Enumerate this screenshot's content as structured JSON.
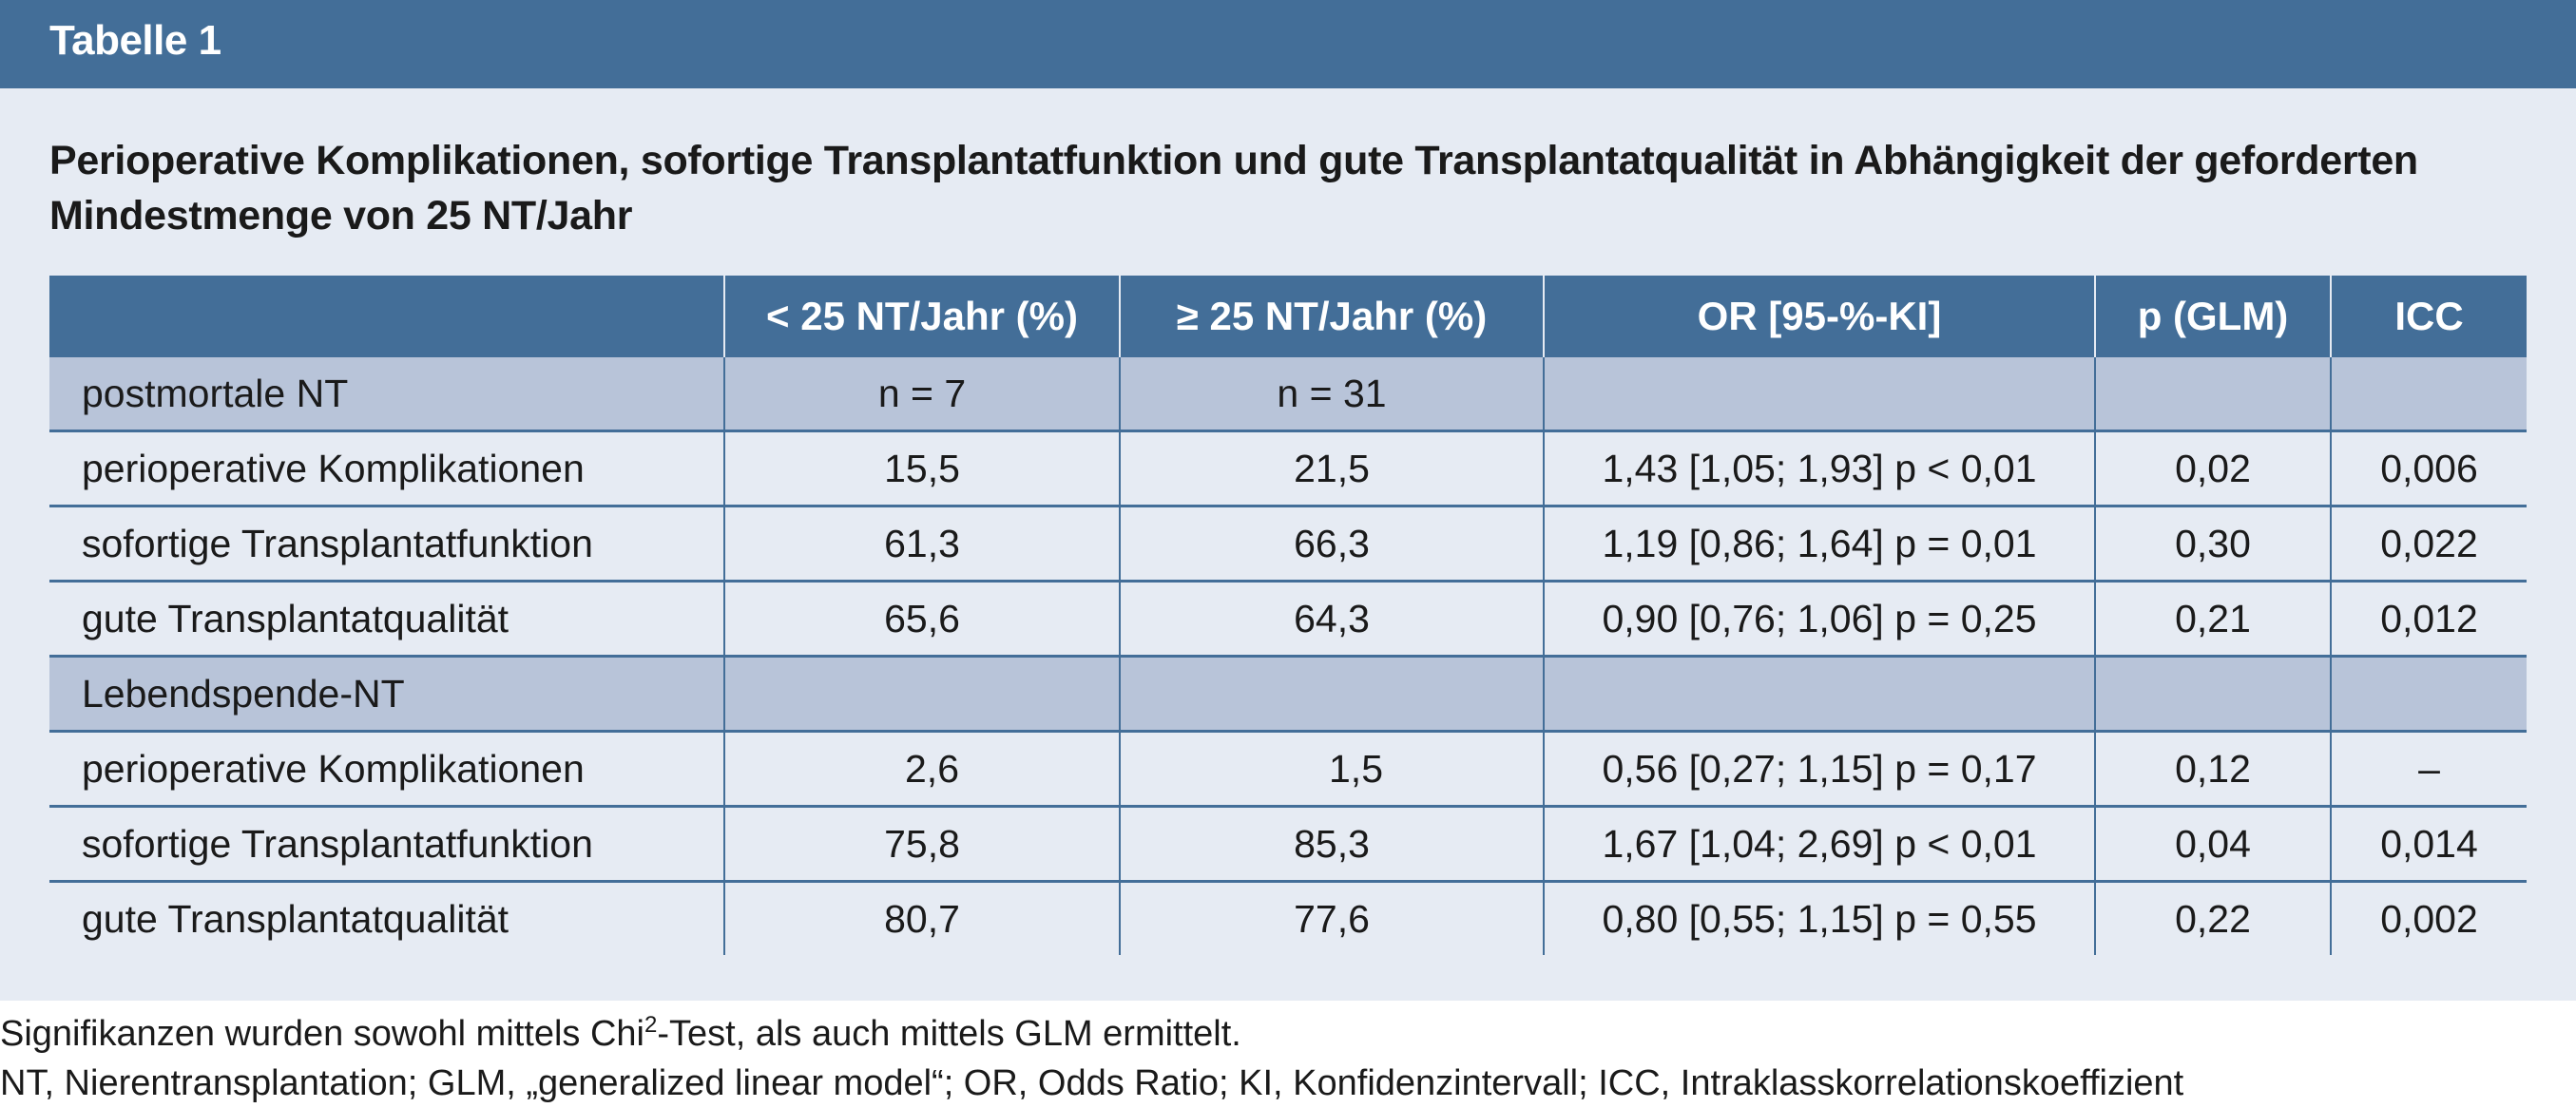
{
  "header": {
    "label": "Tabelle 1"
  },
  "caption": "Perioperative Komplikationen, sofortige Transplantatfunktion und gute Transplantatqualität in Abhängigkeit der geforderten Mindestmenge von 25 NT/Jahr",
  "table": {
    "columns": [
      "",
      "< 25 NT/Jahr (%)",
      "≥ 25 NT/Jahr (%)",
      "OR [95-%-KI]",
      "p (GLM)",
      "ICC"
    ],
    "rows": [
      {
        "group": true,
        "cells": [
          "postmortale NT",
          "n = 7",
          "n = 31",
          "",
          "",
          ""
        ]
      },
      {
        "cells": [
          "perioperative Komplikationen",
          "15,5",
          "21,5",
          "1,43 [1,05; 1,93] p < 0,01",
          "0,02",
          "0,006"
        ]
      },
      {
        "cells": [
          "sofortige Transplantatfunktion",
          "61,3",
          "66,3",
          "1,19 [0,86; 1,64] p = 0,01",
          "0,30",
          "0,022"
        ]
      },
      {
        "cells": [
          "gute Transplantatqualität",
          "65,6",
          "64,3",
          "0,90 [0,76; 1,06] p = 0,25",
          "0,21",
          "0,012"
        ]
      },
      {
        "group": true,
        "cells": [
          "Lebendspende-NT",
          "",
          "",
          "",
          "",
          ""
        ]
      },
      {
        "cells": [
          "perioperative Komplikationen",
          "2,6",
          "1,5",
          "0,56 [0,27; 1,15] p = 0,17",
          "0,12",
          "–"
        ]
      },
      {
        "cells": [
          "sofortige Transplantatfunktion",
          "75,8",
          "85,3",
          "1,67 [1,04; 2,69] p < 0,01",
          "0,04",
          "0,014"
        ]
      },
      {
        "cells": [
          "gute Transplantatqualität",
          "80,7",
          "77,6",
          "0,80 [0,55; 1,15] p = 0,55",
          "0,22",
          "0,002"
        ]
      }
    ]
  },
  "footnotes": {
    "line1_before": "Signifikanzen wurden sowohl mittels Chi",
    "line1_sup": "2",
    "line1_after": "-Test, als auch mittels GLM ermittelt.",
    "line2": "NT, Nierentransplantation; GLM, „generalized linear model“; OR, Odds Ratio; KI, Konfidenzintervall; ICC, Intraklasskorrelationskoeffizient"
  }
}
